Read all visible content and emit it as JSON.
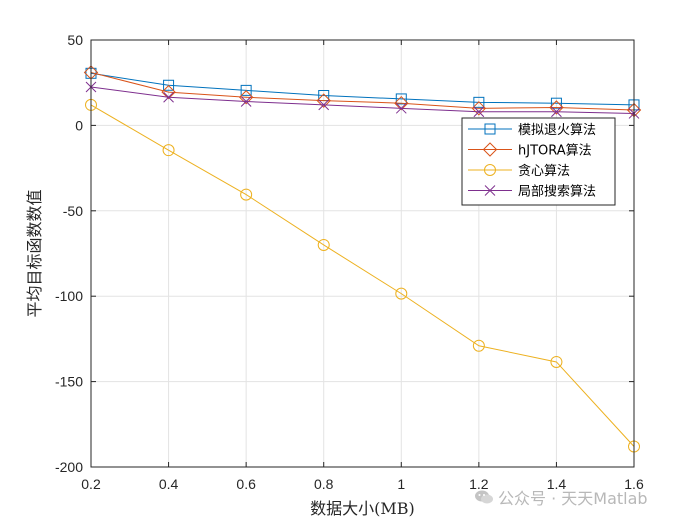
{
  "chart_data": {
    "type": "line",
    "xlabel": "数据大小(MB)",
    "ylabel": "平均目标函数数值",
    "xlim": [
      0.2,
      1.6
    ],
    "ylim": [
      -200,
      50
    ],
    "xticks": [
      0.2,
      0.4,
      0.6,
      0.8,
      1.0,
      1.2,
      1.4,
      1.6
    ],
    "xtick_labels": [
      "0.2",
      "0.4",
      "0.6",
      "0.8",
      "1",
      "1.2",
      "1.4",
      "1.6"
    ],
    "yticks": [
      50,
      0,
      -50,
      -100,
      -150,
      -200
    ],
    "ytick_labels": [
      "50",
      "0",
      "-50",
      "-100",
      "-150",
      "-200"
    ],
    "grid": true,
    "legend_position": "top-right",
    "x": [
      0.2,
      0.4,
      0.6,
      0.8,
      1.0,
      1.2,
      1.4,
      1.6
    ],
    "series": [
      {
        "name": "模拟退火算法",
        "marker": "square",
        "color": "#0072BD",
        "values": [
          30.5,
          23.5,
          20.5,
          17.5,
          15.5,
          13.5,
          13,
          12
        ]
      },
      {
        "name": "hJTORA算法",
        "marker": "diamond",
        "color": "#D95319",
        "values": [
          31,
          19.5,
          16.5,
          14.5,
          13,
          10,
          10.5,
          9
        ]
      },
      {
        "name": "贪心算法",
        "marker": "circle",
        "color": "#EDB120",
        "values": [
          12,
          -14.5,
          -40.5,
          -70,
          -98.5,
          -129,
          -138.5,
          -188
        ]
      },
      {
        "name": "局部搜索算法",
        "marker": "x",
        "color": "#7E2F8E",
        "values": [
          22.5,
          16.5,
          14,
          12,
          10,
          8,
          8,
          7
        ]
      }
    ]
  },
  "watermark": {
    "text": "公众号 · 天天Matlab"
  }
}
